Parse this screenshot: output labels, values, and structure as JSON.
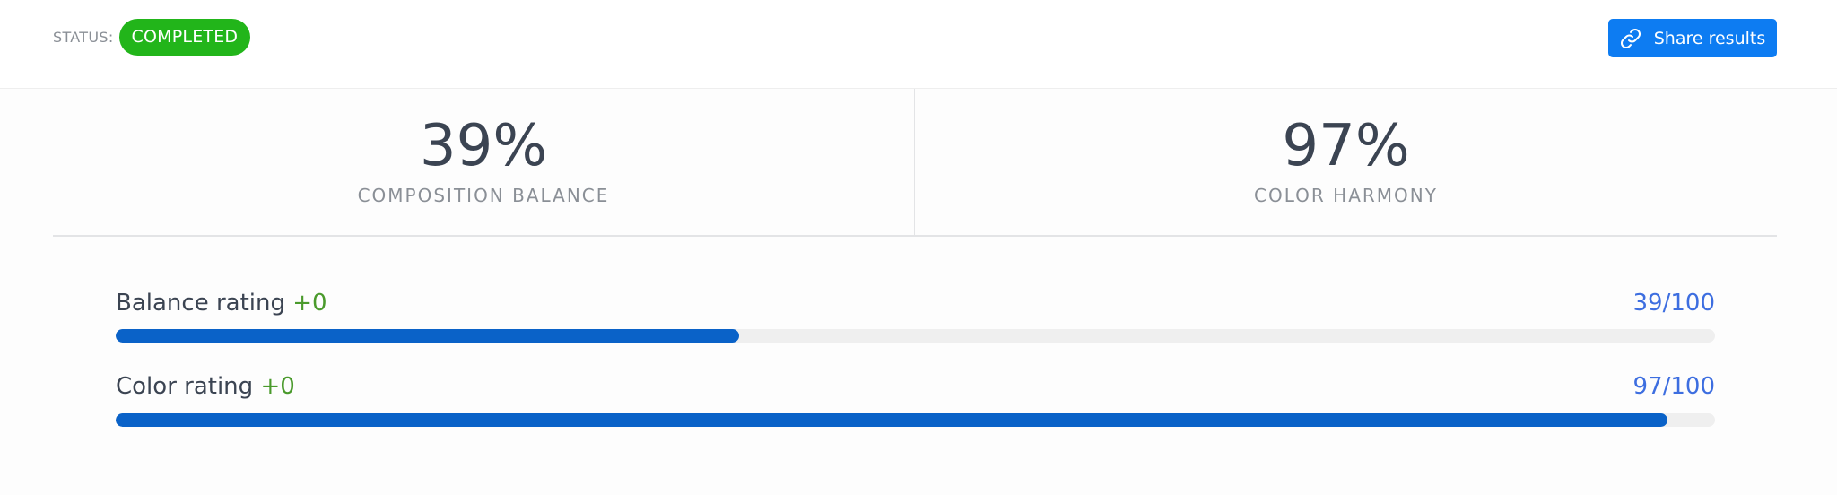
{
  "header": {
    "status_label": "STATUS:",
    "status_value": "COMPLETED",
    "share_label": "Share results",
    "share_icon": "link-icon",
    "colors": {
      "status_badge": "#22b51a",
      "share_button": "#0d7cf2"
    }
  },
  "stats": [
    {
      "value": "39%",
      "label": "COMPOSITION BALANCE"
    },
    {
      "value": "97%",
      "label": "COLOR HARMONY"
    }
  ],
  "ratings": [
    {
      "label": "Balance rating",
      "delta": "+0",
      "score": "39/100",
      "fill_fraction": 0.39
    },
    {
      "label": "Color rating",
      "delta": "+0",
      "score": "97/100",
      "fill_fraction": 0.97
    }
  ],
  "colors": {
    "bar_fill": "#0a62c8",
    "bar_track": "#efefef",
    "score_text": "#3d6ee0",
    "delta_text": "#4a9a2c"
  }
}
